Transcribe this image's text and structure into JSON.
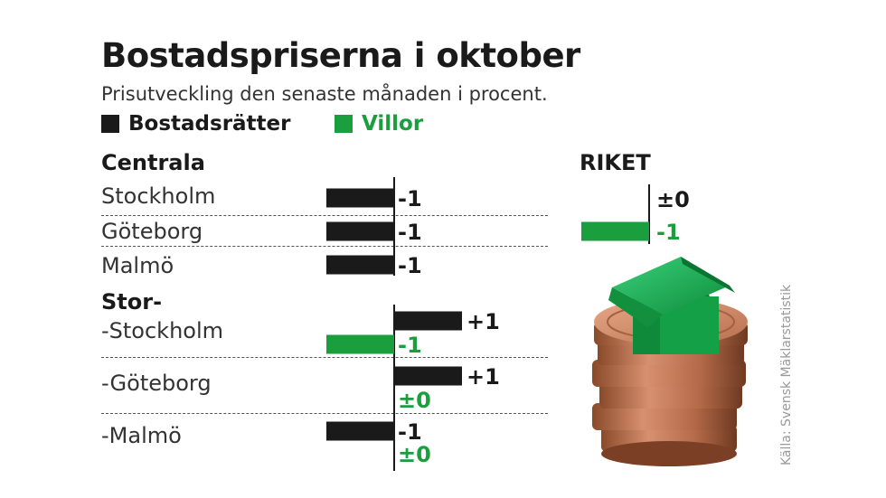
{
  "header": {
    "title": "Bostadspriserna i oktober",
    "subtitle": "Prisutveckling den senaste månaden i procent."
  },
  "legend": [
    {
      "label": "Bostadsrätter",
      "color": "#1a1a1a"
    },
    {
      "label": "Villor",
      "color": "#1a9e3e"
    }
  ],
  "groups": {
    "centrala": "Centrala",
    "stor": "Stor-",
    "riket": "RIKET"
  },
  "cities": {
    "stockholm": "Stockholm",
    "goteborg": "Göteborg",
    "malmo": "Malmö",
    "stor_stockholm": "-Stockholm",
    "stor_goteborg": "-Göteborg",
    "stor_malmo": "-Malmö"
  },
  "source": "Källa: Svensk Mäklarstatistik",
  "image": {
    "description_icon": "coins-house-photo-icon"
  },
  "chart_data": [
    {
      "type": "bar",
      "orientation": "horizontal",
      "categories": [
        "Stockholm",
        "Göteborg",
        "Malmö",
        "-Stockholm",
        "-Göteborg",
        "-Malmö"
      ],
      "series": [
        {
          "name": "Bostadsrätter",
          "color": "#1a1a1a",
          "values": [
            -1,
            -1,
            -1,
            1,
            1,
            -1
          ],
          "labels": [
            "-1",
            "-1",
            "-1",
            "+1",
            "+1",
            "-1"
          ]
        },
        {
          "name": "Villor",
          "color": "#1a9e3e",
          "values": [
            null,
            null,
            null,
            -1,
            0,
            0
          ],
          "labels": [
            null,
            null,
            null,
            "-1",
            "±0",
            "±0"
          ]
        }
      ],
      "xlim": [
        -1,
        1
      ]
    },
    {
      "type": "bar",
      "orientation": "horizontal",
      "title": "RIKET",
      "categories": [
        "Riket"
      ],
      "series": [
        {
          "name": "Bostadsrätter",
          "color": "#1a1a1a",
          "values": [
            0
          ],
          "labels": [
            "±0"
          ]
        },
        {
          "name": "Villor",
          "color": "#1a9e3e",
          "values": [
            -1
          ],
          "labels": [
            "-1"
          ]
        }
      ],
      "xlim": [
        -1,
        1
      ]
    }
  ]
}
